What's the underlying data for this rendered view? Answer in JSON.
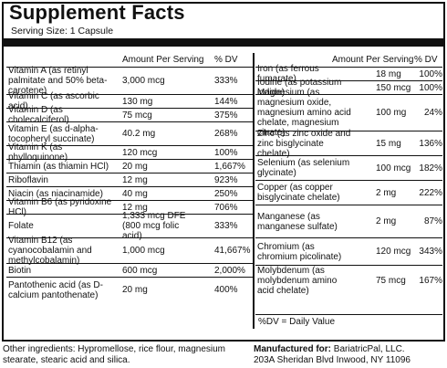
{
  "title": "Supplement Facts",
  "serving_size": "Serving Size: 1 Capsule",
  "headers": {
    "amount": "Amount Per Serving",
    "dv": "% DV"
  },
  "left_rows": [
    {
      "name": "Vitamin A (as retinyl palmitate and 50% beta-carotene)",
      "amount": "3,000 mcg",
      "dv": "333%",
      "h": 30
    },
    {
      "name": "Vitamin C (as ascorbic acid)",
      "amount": "130 mg",
      "dv": "144%",
      "h": 15
    },
    {
      "name": "Vitamin D (as cholecalciferol)",
      "amount": "75 mcg",
      "dv": "375%",
      "h": 15
    },
    {
      "name": "Vitamin E (as d-alpha-tocopheryl succinate)",
      "amount": "40.2 mg",
      "dv": "268%",
      "h": 26
    },
    {
      "name": "Vitamin K (as phylloquinone)",
      "amount": "120 mcg",
      "dv": "100%",
      "h": 15
    },
    {
      "name": "Thiamin (as thiamin HCl)",
      "amount": "20 mg",
      "dv": "1,667%",
      "h": 15
    },
    {
      "name": "Riboflavin",
      "amount": "12 mg",
      "dv": "923%",
      "h": 15
    },
    {
      "name": "Niacin (as niacinamide)",
      "amount": "40 mg",
      "dv": "250%",
      "h": 15
    },
    {
      "name": "Vitamin B6 (as pyridoxine HCl)",
      "amount": "12 mg",
      "dv": "706%",
      "h": 15
    },
    {
      "name": "Folate",
      "amount": "1,333 mcg DFE (800 mcg folic acid)",
      "dv": "333%",
      "h": 26
    },
    {
      "name": "Vitamin B12 (as cyanocobalamin and methylcobalamin)",
      "amount": "1,000 mcg",
      "dv": "41,667%",
      "h": 28
    },
    {
      "name": "Biotin",
      "amount": "600 mcg",
      "dv": "2,000%",
      "h": 15
    },
    {
      "name": "Pantothenic acid (as D-calcium pantothenate)",
      "amount": "20 mg",
      "dv": "400%",
      "h": 27
    }
  ],
  "right_rows": [
    {
      "name": "Iron (as ferrous fumarate)",
      "amount": "18 mg",
      "dv": "100%",
      "h": 15
    },
    {
      "name": "Iodine (as potassium iodide)",
      "amount": "150 mcg",
      "dv": "100%",
      "h": 15
    },
    {
      "name": "Magnesium (as magnesium oxide, magnesium amino acid chelate, magnesium citrate)",
      "amount": "100 mg",
      "dv": "24%",
      "h": 40
    },
    {
      "name": "Zinc (as zinc oxide and zinc bisglycinate chelate)",
      "amount": "15 mg",
      "dv": "136%",
      "h": 27
    },
    {
      "name": "Selenium (as selenium glycinate)",
      "amount": "100 mcg",
      "dv": "182%",
      "h": 27
    },
    {
      "name": "Copper (as copper bisglycinate chelate)",
      "amount": "2 mg",
      "dv": "222%",
      "h": 27
    },
    {
      "name": "Manganese (as manganese sulfate)",
      "amount": "2 mg",
      "dv": "87%",
      "h": 36
    },
    {
      "name": "Chromium (as chromium picolinate)",
      "amount": "120 mcg",
      "dv": "343%",
      "h": 30
    },
    {
      "name": "Molybdenum (as molybdenum amino acid chelate)",
      "amount": "75 mcg",
      "dv": "167%",
      "h": 33
    }
  ],
  "dv_note": "%DV = Daily Value",
  "other_ingredients": "Other ingredients: Hypromellose, rice flour, magnesium stearate, stearic acid and silica.",
  "manufacturer": {
    "label": "Manufactured for:",
    "name": "BariatricPal, LLC.",
    "address": "203A Sheridan Blvd  Inwood, NY 11096"
  }
}
